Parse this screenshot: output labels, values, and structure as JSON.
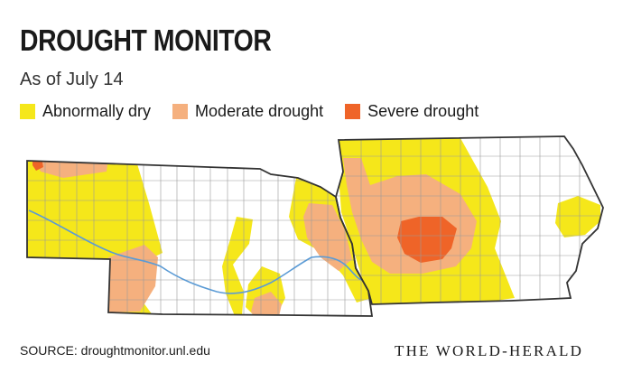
{
  "title": "DROUGHT MONITOR",
  "subtitle": "As of July 14",
  "legend": [
    {
      "label": "Abnormally dry",
      "color": "#f5e71a"
    },
    {
      "label": "Moderate drought",
      "color": "#f5b07e"
    },
    {
      "label": "Severe drought",
      "color": "#ef6428"
    }
  ],
  "map": {
    "states": [
      "Nebraska",
      "Iowa"
    ],
    "border_color": "#333333",
    "county_line_color": "#9a9a9a",
    "river_color": "#5b9bd5"
  },
  "source": "SOURCE: droughtmonitor.unl.edu",
  "logo": "THE WORLD-HERALD"
}
